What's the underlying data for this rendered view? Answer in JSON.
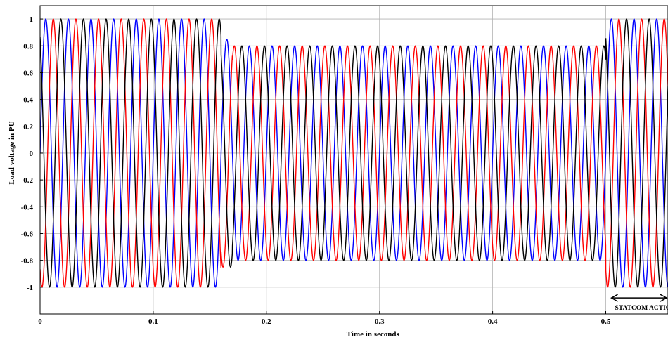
{
  "chart_data": {
    "type": "line",
    "title": "",
    "xlabel": "Time in seconds",
    "ylabel": "Load voltage in PU",
    "xlim": [
      0,
      0.555
    ],
    "ylim": [
      -1.2,
      1.1
    ],
    "x_ticks": [
      0,
      0.1,
      0.2,
      0.3,
      0.4,
      0.5
    ],
    "x_tick_labels": [
      "0",
      "0.1",
      "0.2",
      "0.3",
      "0.4",
      "0.5"
    ],
    "y_ticks": [
      1,
      0.8,
      0.6,
      0.4,
      0.2,
      0,
      -0.2,
      -0.4,
      -0.6,
      -0.8,
      -1
    ],
    "y_tick_labels": [
      "1",
      "0.8",
      "0.6",
      "0.4",
      "0.2",
      "0",
      "-0.2",
      "-0.4",
      "-0.6",
      "-0.8",
      "-1"
    ],
    "grid": true,
    "legend": "none",
    "frequency_hz": 50,
    "series": [
      {
        "color": "#0000ff",
        "phase_deg": 0
      },
      {
        "color": "#ff0000",
        "phase_deg": -120
      },
      {
        "color": "#000000",
        "phase_deg": 120
      }
    ],
    "amplitude_segments": [
      {
        "x_start": 0,
        "x_end": 0.16,
        "amplitude": 1.0
      },
      {
        "x_start": 0.16,
        "x_end": 0.17,
        "amplitude": 0.85
      },
      {
        "x_start": 0.17,
        "x_end": 0.5,
        "amplitude": 0.8
      },
      {
        "x_start": 0.5,
        "x_end": 0.555,
        "amplitude": 1.0
      }
    ],
    "annotation": {
      "text": "STATCOM ACTION",
      "x_start": 0.505,
      "x_end": 0.555,
      "y": -1.08
    }
  }
}
